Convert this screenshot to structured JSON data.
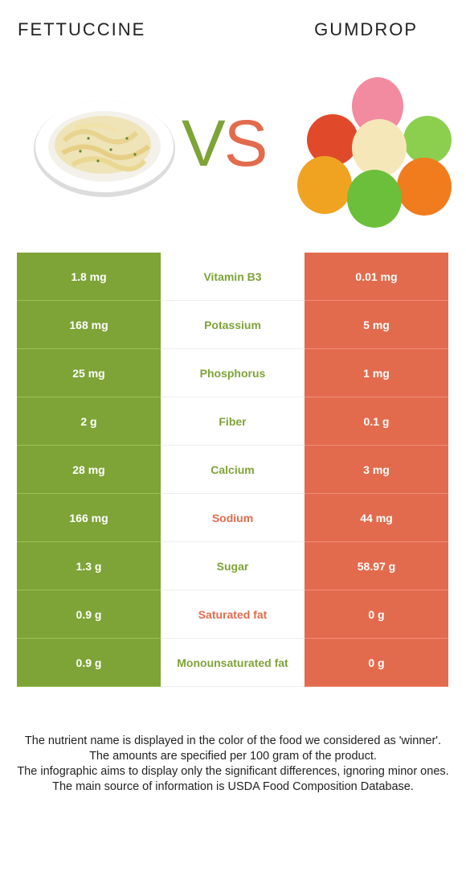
{
  "header": {
    "left_food": "FETTUCCINE",
    "right_food": "GUMDROP",
    "vs_v": "V",
    "vs_s": "S"
  },
  "colors": {
    "left": "#7ea337",
    "right": "#e36b4d"
  },
  "rows": [
    {
      "left": "1.8 mg",
      "nutrient": "Vitamin B3",
      "right": "0.01 mg",
      "winner": "left"
    },
    {
      "left": "168 mg",
      "nutrient": "Potassium",
      "right": "5 mg",
      "winner": "left"
    },
    {
      "left": "25 mg",
      "nutrient": "Phosphorus",
      "right": "1 mg",
      "winner": "left"
    },
    {
      "left": "2 g",
      "nutrient": "Fiber",
      "right": "0.1 g",
      "winner": "left"
    },
    {
      "left": "28 mg",
      "nutrient": "Calcium",
      "right": "3 mg",
      "winner": "left"
    },
    {
      "left": "166 mg",
      "nutrient": "Sodium",
      "right": "44 mg",
      "winner": "right"
    },
    {
      "left": "1.3 g",
      "nutrient": "Sugar",
      "right": "58.97 g",
      "winner": "left"
    },
    {
      "left": "0.9 g",
      "nutrient": "Saturated fat",
      "right": "0 g",
      "winner": "right"
    },
    {
      "left": "0.9 g",
      "nutrient": "Monounsaturated fat",
      "right": "0 g",
      "winner": "left"
    }
  ],
  "footer": {
    "line1": "The nutrient name is displayed in the color of the food we considered as 'winner'.",
    "line2": "The amounts are specified per 100 gram of the product.",
    "line3": "The infographic aims to display only the significant differences, ignoring minor ones.",
    "line4": "The main source of information is USDA Food Composition Database."
  }
}
